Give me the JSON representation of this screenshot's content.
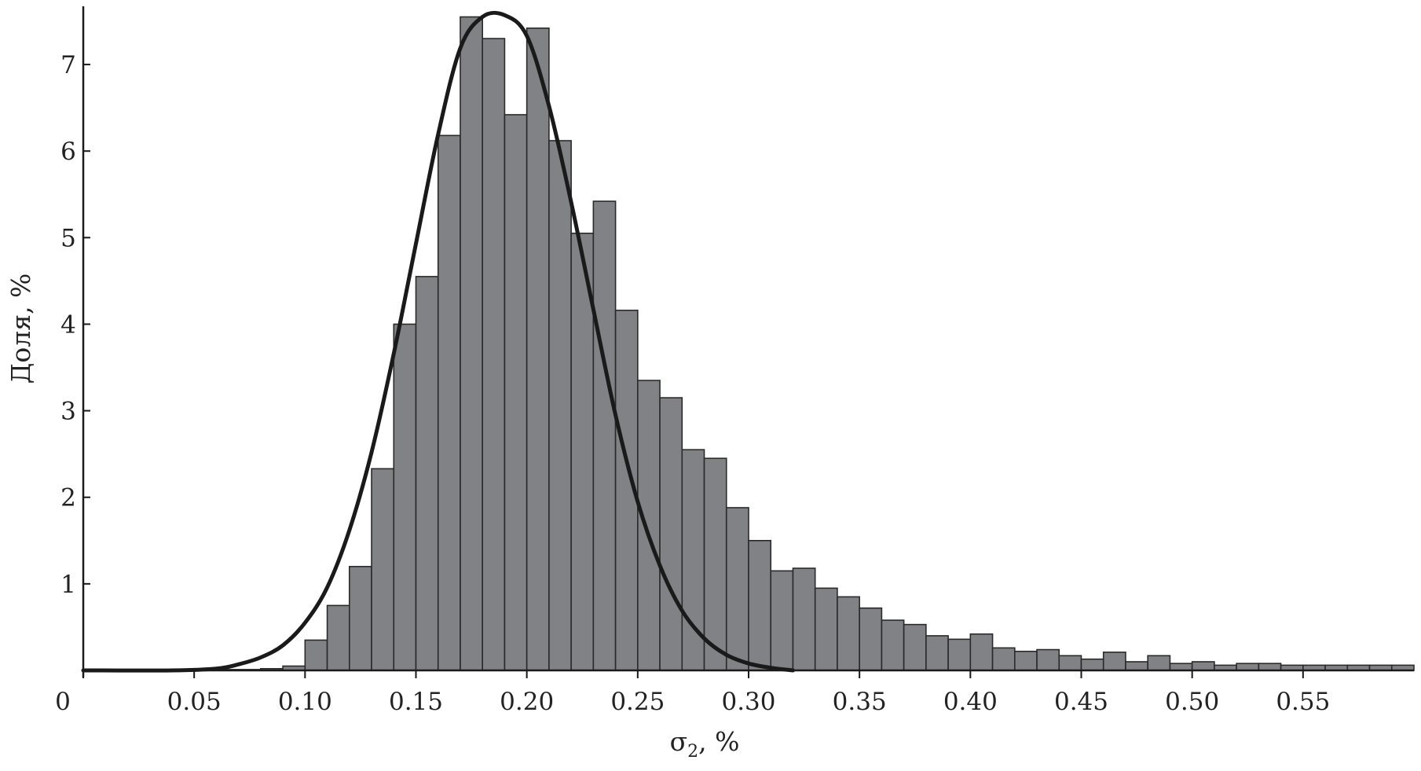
{
  "chart_data": {
    "type": "bar",
    "title": "",
    "xlabel": "σ",
    "xlabel_sub": "2",
    "xlabel_suffix": ", %",
    "ylabel": "Доля, %",
    "xlim": [
      0,
      0.6
    ],
    "ylim": [
      0,
      7.6
    ],
    "bin_width": 0.01,
    "x_ticks": [
      0,
      0.05,
      0.1,
      0.15,
      0.2,
      0.25,
      0.3,
      0.35,
      0.4,
      0.45,
      0.5,
      0.55
    ],
    "x_tick_labels": [
      "0",
      "0.05",
      "0.10",
      "0.15",
      "0.20",
      "0.25",
      "0.30",
      "0.35",
      "0.40",
      "0.45",
      "0.50",
      "0.55"
    ],
    "y_ticks": [
      1,
      2,
      3,
      4,
      5,
      6,
      7
    ],
    "y_tick_labels": [
      "1",
      "2",
      "3",
      "4",
      "5",
      "6",
      "7"
    ],
    "grid": false,
    "legend": "none",
    "bar_color": "#808285",
    "bar_edge_color": "#2a2a2a",
    "curve_color": "#1a1a1a",
    "histogram": {
      "bin_starts": [
        0.06,
        0.07,
        0.08,
        0.09,
        0.1,
        0.11,
        0.12,
        0.13,
        0.14,
        0.15,
        0.16,
        0.17,
        0.18,
        0.19,
        0.2,
        0.21,
        0.22,
        0.23,
        0.24,
        0.25,
        0.26,
        0.27,
        0.28,
        0.29,
        0.3,
        0.31,
        0.32,
        0.33,
        0.34,
        0.35,
        0.36,
        0.37,
        0.38,
        0.39,
        0.4,
        0.41,
        0.42,
        0.43,
        0.44,
        0.45,
        0.46,
        0.47,
        0.48,
        0.49,
        0.5,
        0.51,
        0.52,
        0.53,
        0.54,
        0.55,
        0.56,
        0.57,
        0.58,
        0.59
      ],
      "values": [
        0.01,
        0.01,
        0.02,
        0.05,
        0.35,
        0.75,
        1.2,
        2.33,
        4.0,
        4.55,
        6.18,
        7.55,
        7.3,
        6.42,
        7.42,
        6.12,
        5.05,
        5.42,
        4.16,
        3.35,
        3.15,
        2.55,
        2.45,
        1.88,
        1.5,
        1.15,
        1.18,
        0.95,
        0.85,
        0.72,
        0.58,
        0.53,
        0.4,
        0.36,
        0.42,
        0.26,
        0.22,
        0.24,
        0.17,
        0.13,
        0.21,
        0.1,
        0.17,
        0.08,
        0.1,
        0.06,
        0.08,
        0.08,
        0.06,
        0.06,
        0.06,
        0.06,
        0.06,
        0.06
      ]
    },
    "series": [
      {
        "type": "line",
        "x": [
          0.0,
          0.04,
          0.06,
          0.07,
          0.08,
          0.09,
          0.1,
          0.11,
          0.12,
          0.13,
          0.14,
          0.15,
          0.16,
          0.17,
          0.18,
          0.19,
          0.2,
          0.21,
          0.22,
          0.23,
          0.24,
          0.25,
          0.26,
          0.27,
          0.28,
          0.29,
          0.3,
          0.31,
          0.32
        ],
        "values": [
          0.0,
          0.0,
          0.02,
          0.07,
          0.15,
          0.29,
          0.55,
          0.96,
          1.62,
          2.52,
          3.66,
          4.93,
          6.19,
          7.19,
          7.55,
          7.57,
          7.33,
          6.52,
          5.41,
          4.17,
          2.95,
          1.95,
          1.21,
          0.69,
          0.37,
          0.18,
          0.08,
          0.03,
          0.0
        ]
      }
    ]
  }
}
